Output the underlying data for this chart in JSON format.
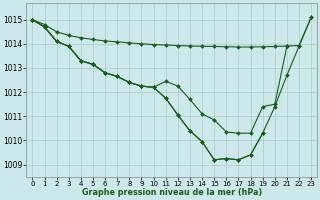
{
  "background_color": "#cce8e8",
  "grid_color": "#aacccc",
  "line_color": "#1a5c1a",
  "marker_color": "#1a5c1a",
  "xlabel": "Graphe pression niveau de la mer (hPa)",
  "xlim": [
    -0.5,
    23.5
  ],
  "ylim": [
    1008.5,
    1015.7
  ],
  "yticks": [
    1009,
    1010,
    1011,
    1012,
    1013,
    1014,
    1015
  ],
  "xticks": [
    0,
    1,
    2,
    3,
    4,
    5,
    6,
    7,
    8,
    9,
    10,
    11,
    12,
    13,
    14,
    15,
    16,
    17,
    18,
    19,
    20,
    21,
    22,
    23
  ],
  "series1_x": [
    0,
    1,
    2,
    3,
    4,
    5,
    6,
    7,
    8,
    9,
    10,
    11,
    12,
    13,
    14,
    15,
    16,
    17,
    18,
    19,
    20,
    21,
    22,
    23
  ],
  "series1_y": [
    1015.0,
    1014.8,
    1014.5,
    1014.35,
    1014.25,
    1014.18,
    1014.12,
    1014.08,
    1014.04,
    1014.0,
    1013.97,
    1013.95,
    1013.93,
    1013.91,
    1013.9,
    1013.89,
    1013.88,
    1013.87,
    1013.87,
    1013.88,
    1013.89,
    1013.91,
    1013.93,
    1015.1
  ],
  "series2_x": [
    0,
    1,
    2,
    3,
    4,
    5,
    6,
    7,
    8,
    9,
    10,
    11,
    12,
    13,
    14,
    15,
    16,
    17,
    18,
    19,
    20,
    21
  ],
  "series2_y": [
    1015.0,
    1014.7,
    1014.1,
    1013.9,
    1013.3,
    1013.15,
    1012.8,
    1012.65,
    1012.4,
    1012.25,
    1012.2,
    1012.45,
    1012.25,
    1011.7,
    1011.1,
    1010.85,
    1010.35,
    1010.3,
    1010.3,
    1011.4,
    1011.5,
    1013.9
  ],
  "series3_x": [
    0,
    1,
    2,
    3,
    4,
    5,
    6,
    7,
    8,
    9,
    10,
    11,
    12,
    13,
    14,
    15,
    16,
    17,
    18,
    19
  ],
  "series3_y": [
    1015.0,
    1014.7,
    1014.1,
    1013.9,
    1013.3,
    1013.15,
    1012.8,
    1012.65,
    1012.4,
    1012.25,
    1012.2,
    1011.75,
    1011.05,
    1010.4,
    1009.95,
    1009.2,
    1009.25,
    1009.2,
    1009.4,
    1010.3
  ],
  "series4_x": [
    0,
    1,
    2,
    3,
    4,
    5,
    6,
    7,
    8,
    9,
    10,
    11,
    12,
    13,
    14,
    15,
    16,
    17,
    18,
    19,
    20,
    21,
    22,
    23
  ],
  "series4_y": [
    1015.0,
    1014.7,
    1014.1,
    1013.9,
    1013.3,
    1013.15,
    1012.8,
    1012.65,
    1012.4,
    1012.25,
    1012.2,
    1011.75,
    1011.05,
    1010.4,
    1009.95,
    1009.2,
    1009.25,
    1009.2,
    1009.4,
    1010.3,
    1011.4,
    1012.7,
    1013.9,
    1015.1
  ]
}
